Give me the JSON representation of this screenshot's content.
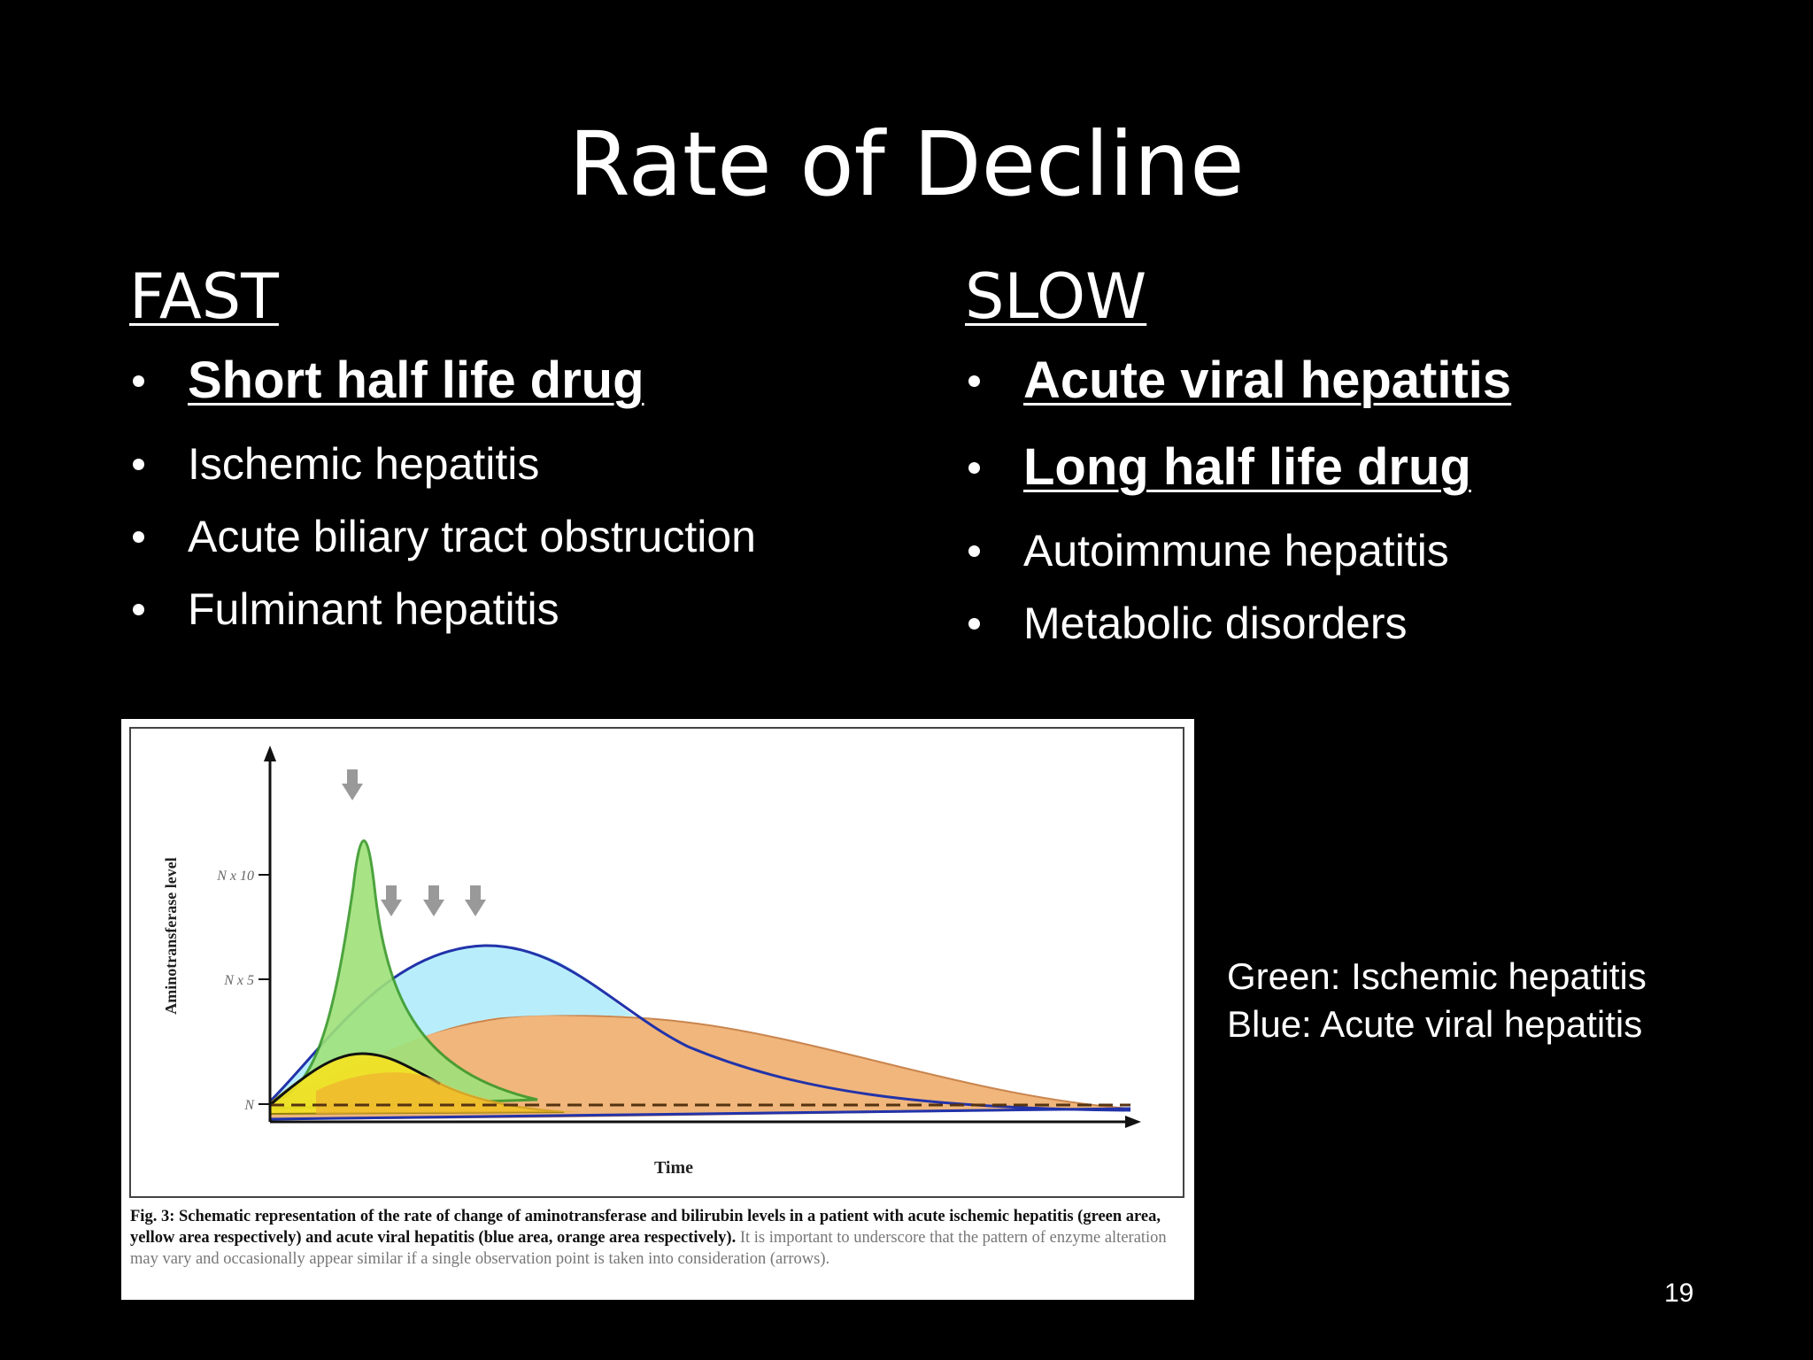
{
  "slide": {
    "title": "Rate of Decline",
    "number": "19"
  },
  "fast": {
    "heading": "FAST",
    "items": [
      {
        "label": "Short half life drug",
        "emphasis": true
      },
      {
        "label": "Ischemic hepatitis",
        "emphasis": false
      },
      {
        "label": "Acute biliary tract obstruction",
        "emphasis": false
      },
      {
        "label": "Fulminant hepatitis",
        "emphasis": false
      }
    ]
  },
  "slow": {
    "heading": "SLOW",
    "items": [
      {
        "label": "Acute viral hepatitis",
        "emphasis": true
      },
      {
        "label": "Long half life drug",
        "emphasis": true
      },
      {
        "label": "Autoimmune hepatitis",
        "emphasis": false
      },
      {
        "label": "Metabolic disorders",
        "emphasis": false
      }
    ]
  },
  "figure": {
    "ylabel": "Aminotransferase level",
    "xlabel": "Time",
    "y_ticks": [
      "N x 10",
      "N x 5",
      "N"
    ],
    "colors": {
      "green": "#9fe27a",
      "yellow": "#f5e321",
      "blue": "#b8eefb",
      "orange": "#eeaa66"
    },
    "caption_bold": "Fig. 3: Schematic representation of the rate of change of aminotransferase and bilirubin levels in a patient with acute ischemic hepatitis (green area, yellow area respectively) and acute viral hepatitis (blue area, orange area respectively).",
    "caption_light": "It is important to underscore that the pattern of enzyme alteration may vary and occasionally appear similar if a single observation point is taken into consideration (arrows)."
  },
  "legend_note": {
    "line1": "Green: Ischemic hepatitis",
    "line2": "Blue: Acute viral hepatitis"
  }
}
